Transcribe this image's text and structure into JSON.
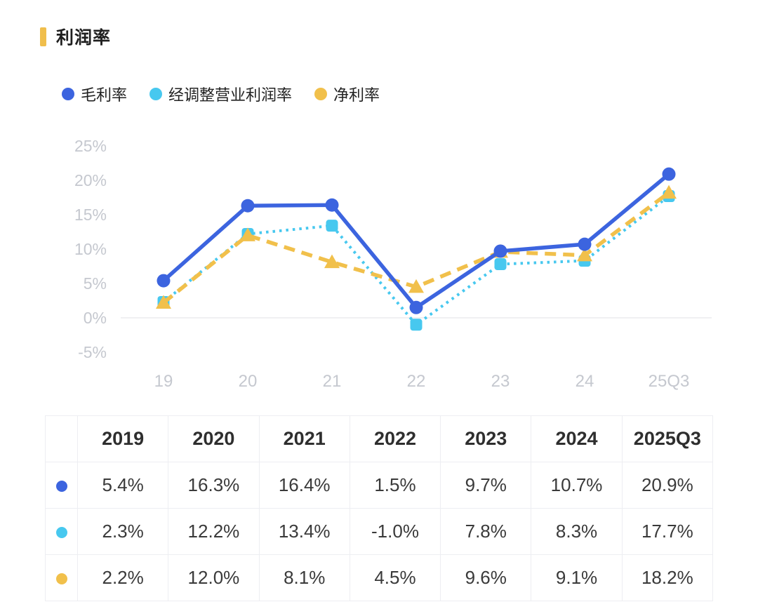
{
  "header": {
    "title": "利润率",
    "accent_color": "#F0BE4C"
  },
  "legend": {
    "items": [
      {
        "key": "gross-margin",
        "label": "毛利率",
        "color": "#3C64DF"
      },
      {
        "key": "adjusted-operating-margin",
        "label": "经调整营业利润率",
        "color": "#47C8EF"
      },
      {
        "key": "net-margin",
        "label": "净利率",
        "color": "#F1C04B"
      }
    ]
  },
  "chart_data": {
    "type": "line",
    "title": "利润率",
    "categories": [
      "19",
      "20",
      "21",
      "22",
      "23",
      "24",
      "25Q3"
    ],
    "series": [
      {
        "key": "gross-margin",
        "name": "毛利率",
        "color": "#3C64DF",
        "line_style": "solid",
        "marker": "circle",
        "values": [
          5.4,
          16.3,
          16.4,
          1.5,
          9.7,
          10.7,
          20.9
        ]
      },
      {
        "key": "adjusted-operating-margin",
        "name": "经调整营业利润率",
        "color": "#47C8EF",
        "line_style": "dotted",
        "marker": "square",
        "values": [
          2.3,
          12.2,
          13.4,
          -1.0,
          7.8,
          8.3,
          17.7
        ]
      },
      {
        "key": "net-margin",
        "name": "净利率",
        "color": "#F1C04B",
        "line_style": "dashed",
        "marker": "triangle",
        "values": [
          2.2,
          12.0,
          8.1,
          4.5,
          9.6,
          9.1,
          18.2
        ]
      }
    ],
    "ylim": [
      -5,
      25
    ],
    "yticks": [
      {
        "value": 25,
        "label": "25%"
      },
      {
        "value": 20,
        "label": "20%"
      },
      {
        "value": 15,
        "label": "15%"
      },
      {
        "value": 10,
        "label": "10%"
      },
      {
        "value": 5,
        "label": "5%"
      },
      {
        "value": 0,
        "label": "0%"
      },
      {
        "value": -5,
        "label": "-5%"
      }
    ],
    "grid": "zero-baseline-only",
    "legend_position": "top",
    "tick_color": "#C5C8CF",
    "gridline_color": "#ECECEE"
  },
  "table": {
    "columns": [
      "2019",
      "2020",
      "2021",
      "2022",
      "2023",
      "2024",
      "2025Q3"
    ],
    "rows": [
      {
        "series": "毛利率",
        "dot_color": "#3C64DF",
        "values": [
          "5.4%",
          "16.3%",
          "16.4%",
          "1.5%",
          "9.7%",
          "10.7%",
          "20.9%"
        ]
      },
      {
        "series": "经调整营业利润率",
        "dot_color": "#47C8EF",
        "values": [
          "2.3%",
          "12.2%",
          "13.4%",
          "-1.0%",
          "7.8%",
          "8.3%",
          "17.7%"
        ]
      },
      {
        "series": "净利率",
        "dot_color": "#F1C04B",
        "values": [
          "2.2%",
          "12.0%",
          "8.1%",
          "4.5%",
          "9.6%",
          "9.1%",
          "18.2%"
        ]
      }
    ]
  }
}
